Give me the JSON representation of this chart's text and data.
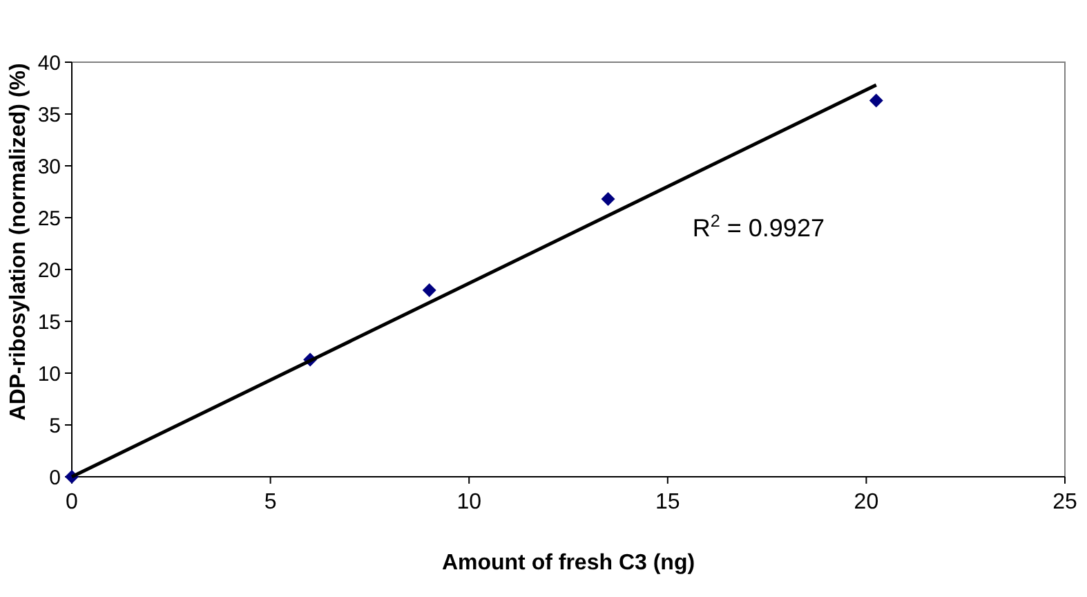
{
  "chart_data": {
    "type": "scatter",
    "xlabel": "Amount of fresh C3 (ng)",
    "ylabel": "ADP-ribosylation (normalized) (%)",
    "xlim": [
      0,
      25
    ],
    "xticks": [
      0,
      5,
      10,
      15,
      20,
      25
    ],
    "ylim": [
      0,
      40
    ],
    "yticks": [
      0,
      5,
      10,
      15,
      20,
      25,
      30,
      35,
      40
    ],
    "grid": false,
    "marker": "diamond",
    "series": [
      {
        "color": "#000080",
        "x": [
          0,
          6,
          9,
          13.5,
          20.25
        ],
        "values": [
          0,
          11.3,
          18,
          26.8,
          36.3
        ]
      },
      {
        "type": "line",
        "color": "#000000",
        "line_style": "solid",
        "marker": "none",
        "x": [
          0,
          20.25
        ],
        "values": [
          0,
          37.8
        ]
      }
    ],
    "annotations": [
      "R$^{2}$ = 0.9927"
    ]
  }
}
